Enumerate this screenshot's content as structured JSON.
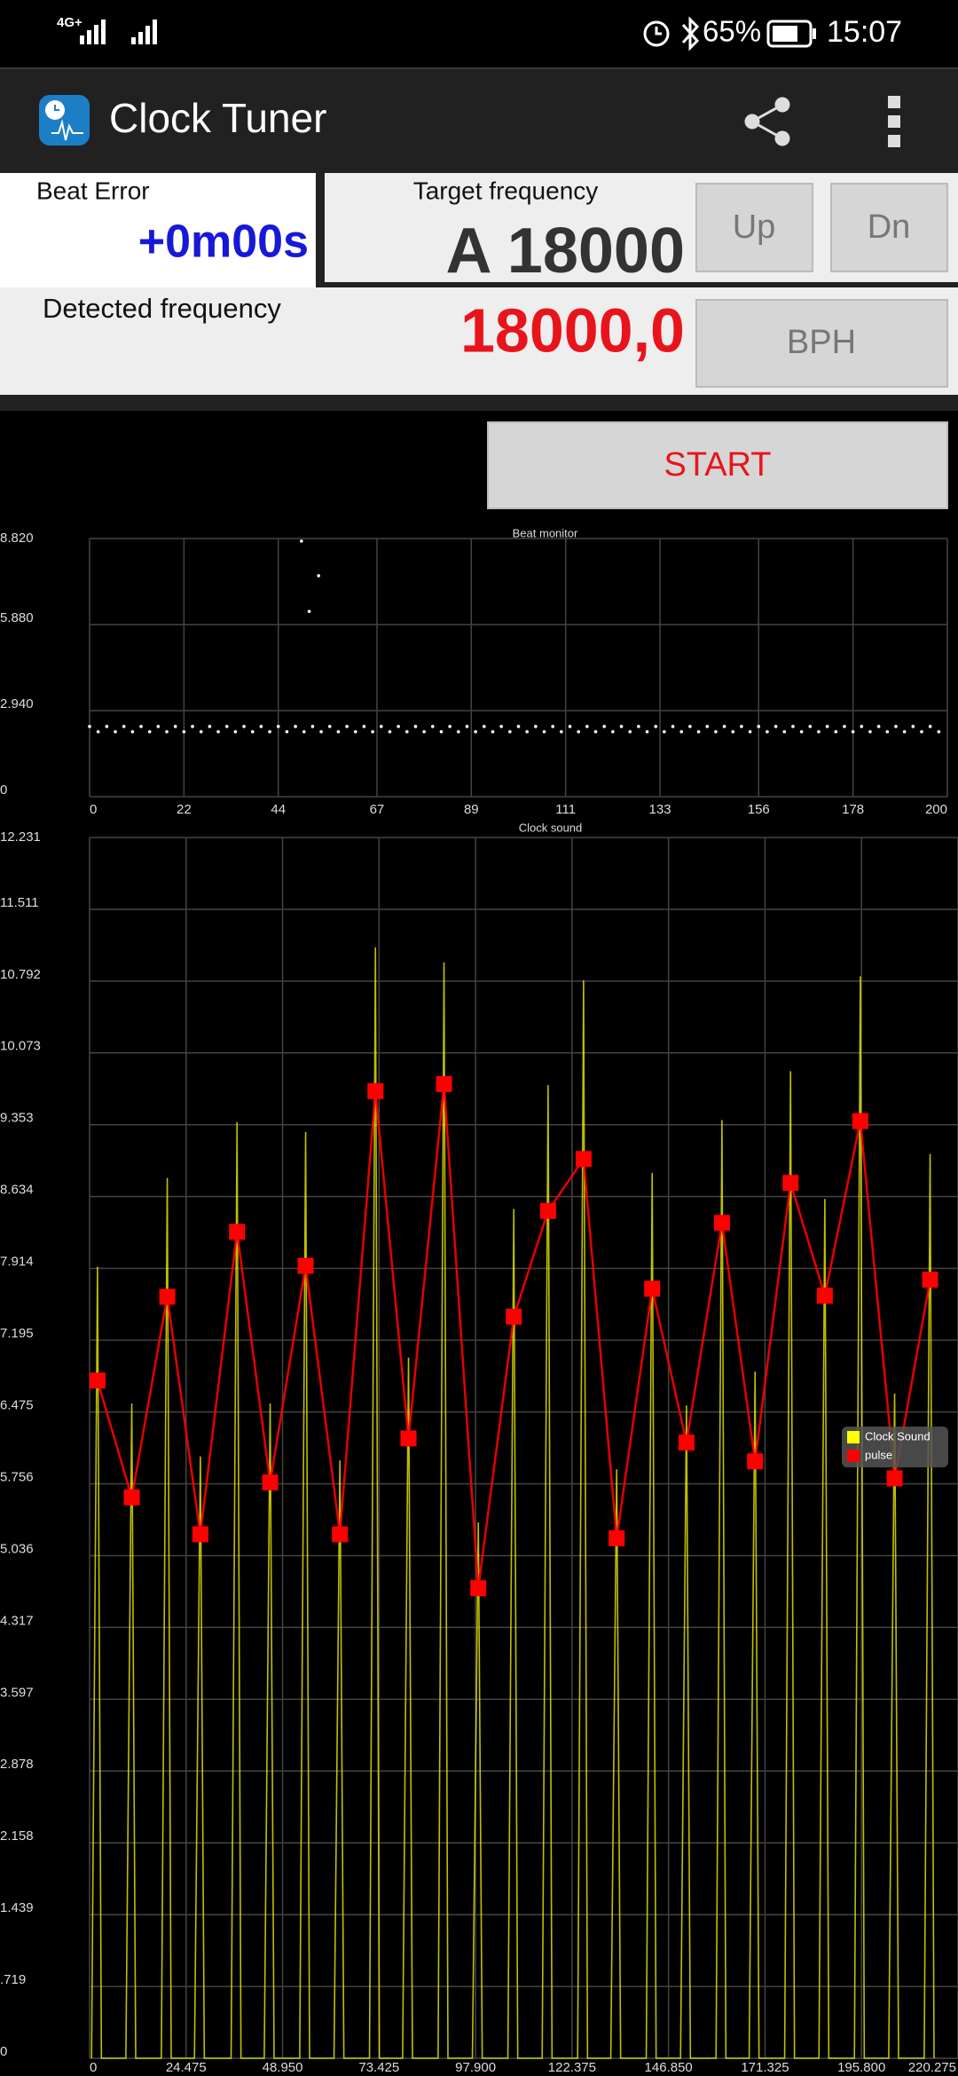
{
  "status_bar": {
    "network": "4G+",
    "battery": "65%",
    "time": "15:07"
  },
  "app_bar": {
    "title": "Clock Tuner"
  },
  "panel": {
    "beat_error_label": "Beat Error",
    "beat_error": "+0m00s",
    "target_label": "Target frequency",
    "target": "A 18000",
    "up": "Up",
    "down": "Dn",
    "detected_label": "Detected frequency",
    "detected": "18000,0",
    "unit": "BPH",
    "state": "Stopped",
    "start": "START"
  },
  "chart_data": [
    {
      "type": "scatter",
      "title": "Beat monitor",
      "color": "#ffffff",
      "grid": true,
      "xlim": [
        0,
        200
      ],
      "ylim": [
        0,
        8.82
      ],
      "xticks": [
        0,
        22,
        44,
        67,
        89,
        111,
        133,
        156,
        178,
        200
      ],
      "yticks": [
        0,
        {
          "value": 2.94,
          "label": "2.940"
        },
        {
          "value": 5.88,
          "label": "5.880"
        },
        {
          "value": 8.82,
          "label": "8.820"
        }
      ],
      "x": [
        0,
        2,
        4,
        6,
        8,
        10,
        12,
        14,
        16,
        18,
        20,
        22,
        24,
        26,
        28,
        30,
        32,
        34,
        36,
        38,
        40,
        42,
        44,
        46,
        48,
        50,
        52,
        54,
        56,
        58,
        60,
        62,
        64,
        66,
        68,
        70,
        72,
        74,
        76,
        78,
        80,
        82,
        84,
        86,
        88,
        90,
        92,
        94,
        96,
        98,
        100,
        102,
        104,
        106,
        108,
        110,
        112,
        114,
        116,
        118,
        120,
        122,
        124,
        126,
        128,
        130,
        132,
        134,
        136,
        138,
        140,
        142,
        144,
        146,
        148,
        150,
        152,
        154,
        156,
        158,
        160,
        162,
        164,
        166,
        168,
        170,
        172,
        174,
        176,
        178,
        180,
        182,
        184,
        186,
        188,
        190,
        192,
        194,
        196,
        198,
        49.4,
        51.2,
        53.4
      ],
      "y": [
        2.4,
        2.22,
        2.4,
        2.22,
        2.4,
        2.22,
        2.4,
        2.22,
        2.4,
        2.22,
        2.4,
        2.22,
        2.4,
        2.22,
        2.4,
        2.22,
        2.4,
        2.22,
        2.4,
        2.22,
        2.4,
        2.22,
        2.4,
        2.22,
        2.4,
        2.22,
        2.4,
        2.22,
        2.4,
        2.22,
        2.4,
        2.22,
        2.4,
        2.22,
        2.4,
        2.22,
        2.4,
        2.22,
        2.4,
        2.22,
        2.4,
        2.22,
        2.4,
        2.22,
        2.4,
        2.22,
        2.4,
        2.22,
        2.4,
        2.22,
        2.4,
        2.22,
        2.4,
        2.22,
        2.4,
        2.22,
        2.4,
        2.22,
        2.4,
        2.22,
        2.4,
        2.22,
        2.4,
        2.22,
        2.4,
        2.22,
        2.4,
        2.22,
        2.4,
        2.22,
        2.4,
        2.22,
        2.4,
        2.22,
        2.4,
        2.22,
        2.4,
        2.22,
        2.4,
        2.22,
        2.4,
        2.22,
        2.4,
        2.22,
        2.4,
        2.22,
        2.4,
        2.22,
        2.4,
        2.22,
        2.4,
        2.22,
        2.4,
        2.22,
        2.4,
        2.22,
        2.4,
        2.22,
        2.4,
        2.22,
        8.73,
        6.33,
        7.55
      ]
    },
    {
      "type": "line",
      "title": "Clock sound",
      "grid": true,
      "legend": "right",
      "xlim": [
        0,
        220.275
      ],
      "ylim": [
        0,
        12.231
      ],
      "xticks": [
        0,
        24.475,
        {
          "value": 48.95,
          "label": "48.950"
        },
        73.425,
        {
          "value": 97.9,
          "label": "97.900"
        },
        122.375,
        {
          "value": 146.85,
          "label": "146.850"
        },
        171.325,
        {
          "value": 195.8,
          "label": "195.800"
        },
        220.275
      ],
      "yticks": [
        0,
        {
          "value": 0.719,
          "label": ".719"
        },
        1.439,
        2.158,
        2.878,
        3.597,
        4.317,
        5.036,
        5.756,
        6.475,
        7.195,
        7.914,
        8.634,
        9.353,
        10.073,
        10.792,
        11.511,
        12.231
      ],
      "series": [
        {
          "name": "Clock Sound",
          "color": "#ffff00",
          "x": [
            0.5,
            2.0,
            3.0,
            9.2,
            10.7,
            11.7,
            18.2,
            19.7,
            20.7,
            26.6,
            28.1,
            29.1,
            35.9,
            37.4,
            38.4,
            44.3,
            45.8,
            46.8,
            53.3,
            54.8,
            55.8,
            62.0,
            63.5,
            64.5,
            71.0,
            72.5,
            73.5,
            79.4,
            80.9,
            81.9,
            88.4,
            89.9,
            90.9,
            97.1,
            98.6,
            99.6,
            106.1,
            107.6,
            108.6,
            114.8,
            116.3,
            117.3,
            123.8,
            125.3,
            126.3,
            132.2,
            133.7,
            134.7,
            141.2,
            142.7,
            143.7,
            149.9,
            151.4,
            152.4,
            158.9,
            160.4,
            161.4,
            167.3,
            168.8,
            169.8,
            176.3,
            177.8,
            178.8,
            185.0,
            186.5,
            187.5,
            194.0,
            195.5,
            196.5,
            202.7,
            204.2,
            205.2,
            211.7,
            213.2,
            214.2
          ],
          "values": [
            0,
            7.93,
            0,
            0,
            6.56,
            0,
            0,
            8.82,
            0,
            0,
            6.03,
            0,
            0,
            9.38,
            0,
            0,
            6.56,
            0,
            0,
            9.28,
            0,
            0,
            5.99,
            0,
            0,
            11.13,
            0,
            0,
            7.02,
            0,
            0,
            10.98,
            0,
            0,
            5.37,
            0,
            0,
            8.51,
            0,
            0,
            9.75,
            0,
            0,
            10.8,
            0,
            0,
            5.9,
            0,
            0,
            8.87,
            0,
            0,
            6.54,
            0,
            0,
            9.4,
            0,
            0,
            6.88,
            0,
            0,
            9.89,
            0,
            0,
            8.61,
            0,
            0,
            10.84,
            0,
            0,
            6.66,
            0,
            0,
            9.06,
            0
          ]
        },
        {
          "name": "pulse",
          "color": "#ff0000",
          "marker": "square",
          "x": [
            2.0,
            10.7,
            19.7,
            28.1,
            37.4,
            45.8,
            54.8,
            63.5,
            72.5,
            80.9,
            89.9,
            98.6,
            107.6,
            116.3,
            125.3,
            133.7,
            142.7,
            151.4,
            160.4,
            168.8,
            177.8,
            186.5,
            195.5,
            204.2,
            213.2
          ],
          "values": [
            6.79,
            5.62,
            7.63,
            5.25,
            8.28,
            5.77,
            7.94,
            5.25,
            9.69,
            6.21,
            9.76,
            4.71,
            7.43,
            8.49,
            9.01,
            5.21,
            7.71,
            6.17,
            8.37,
            5.98,
            8.77,
            7.64,
            9.39,
            5.81,
            7.8
          ]
        }
      ]
    }
  ]
}
